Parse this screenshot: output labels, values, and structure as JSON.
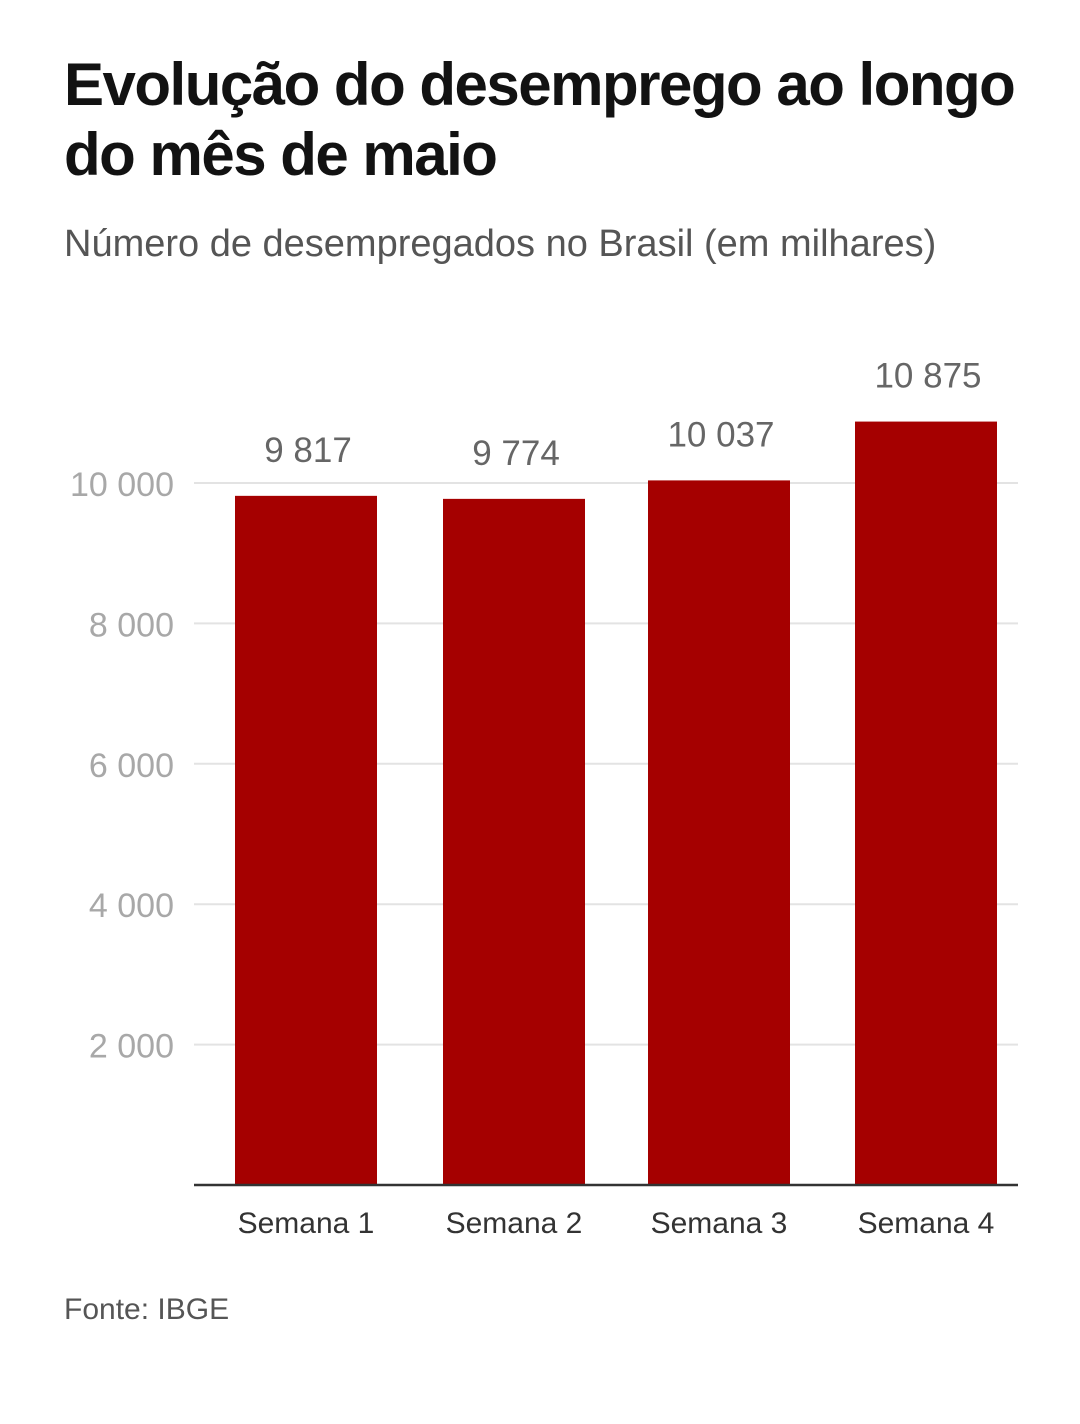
{
  "title": "Evolução do desemprego ao longo do mês de maio",
  "subtitle": "Número de desempregados no Brasil (em milhares)",
  "source": "Fonte: IBGE",
  "colors": {
    "bar": "#a50000",
    "grid": "#e3e3e3",
    "axis": "#333333",
    "tick_label": "#a8a8a8",
    "value_label": "#666666",
    "category_label": "#333333"
  },
  "chart_data": {
    "type": "bar",
    "categories": [
      "Semana 1",
      "Semana 2",
      "Semana 3",
      "Semana 4"
    ],
    "values": [
      9817,
      9774,
      10037,
      10875
    ],
    "value_labels": [
      "9 817",
      "9 774",
      "10 037",
      "10 875"
    ],
    "y_ticks": [
      2000,
      4000,
      6000,
      8000,
      10000
    ],
    "y_tick_labels": [
      "2 000",
      "4 000",
      "6 000",
      "8 000",
      "10 000"
    ],
    "ylim": [
      0,
      11000
    ],
    "grid": true,
    "legend": "none"
  }
}
